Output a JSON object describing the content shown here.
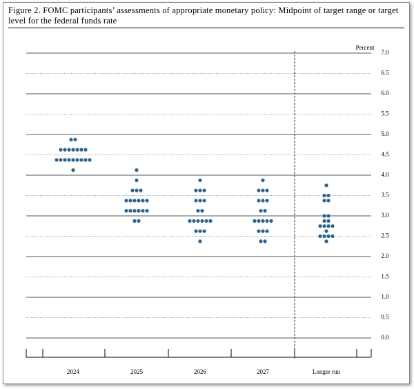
{
  "chart_data": {
    "type": "dot",
    "title": "Figure 2.  FOMC participants’ assessments of appropriate monetary policy: Midpoint of target range or target level for the federal funds rate",
    "y_label": "Percent",
    "color": "#2a6496",
    "categories": [
      "2024",
      "2025",
      "2026",
      "2027",
      "Longer run"
    ],
    "dots": [
      [
        4.875,
        4.875,
        4.625,
        4.625,
        4.625,
        4.625,
        4.625,
        4.625,
        4.625,
        4.375,
        4.375,
        4.375,
        4.375,
        4.375,
        4.375,
        4.375,
        4.375,
        4.375,
        4.125
      ],
      [
        4.125,
        3.875,
        3.625,
        3.625,
        3.625,
        3.375,
        3.375,
        3.375,
        3.375,
        3.375,
        3.375,
        3.125,
        3.125,
        3.125,
        3.125,
        3.125,
        3.125,
        2.875,
        2.875
      ],
      [
        3.875,
        3.625,
        3.625,
        3.625,
        3.375,
        3.375,
        3.375,
        3.125,
        3.125,
        2.875,
        2.875,
        2.875,
        2.875,
        2.875,
        2.875,
        2.625,
        2.625,
        2.625,
        2.375
      ],
      [
        3.875,
        3.625,
        3.625,
        3.625,
        3.375,
        3.375,
        3.375,
        3.125,
        3.125,
        2.875,
        2.875,
        2.875,
        2.875,
        2.875,
        2.625,
        2.625,
        2.625,
        2.375,
        2.375
      ],
      [
        3.75,
        3.5,
        3.5,
        3.375,
        3.375,
        3.0,
        3.0,
        2.875,
        2.875,
        2.75,
        2.75,
        2.75,
        2.75,
        2.625,
        2.5,
        2.5,
        2.5,
        2.5,
        2.375
      ]
    ],
    "ylim": [
      0,
      7
    ],
    "yticks": [
      {
        "value": 0,
        "label": "0.0"
      },
      {
        "value": 0.5,
        "label": "0.5"
      },
      {
        "value": 1,
        "label": "1.0"
      },
      {
        "value": 1.5,
        "label": "1.5"
      },
      {
        "value": 2,
        "label": "2.0"
      },
      {
        "value": 2.5,
        "label": "2.5"
      },
      {
        "value": 3,
        "label": "3.0"
      },
      {
        "value": 3.5,
        "label": "3.5"
      },
      {
        "value": 4,
        "label": "4.0"
      },
      {
        "value": 4.5,
        "label": "4.5"
      },
      {
        "value": 5,
        "label": "5.0"
      },
      {
        "value": 5.5,
        "label": "5.5"
      },
      {
        "value": 6,
        "label": "6.0"
      },
      {
        "value": 6.5,
        "label": "6.5"
      },
      {
        "value": 7,
        "label": "7.0"
      }
    ],
    "grid": true
  }
}
